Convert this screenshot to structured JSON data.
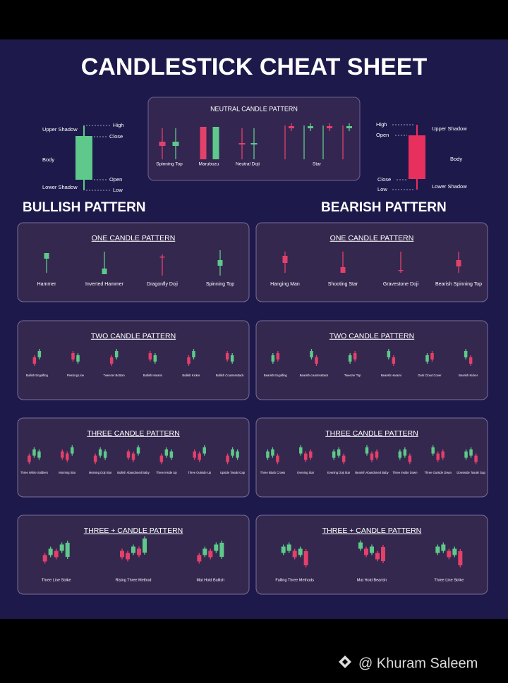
{
  "title": "CANDLESTICK CHEAT SHEET",
  "anatomy_bullish": {
    "upper_shadow": "Upper Shadow",
    "high": "High",
    "close": "Close",
    "body": "Body",
    "open": "Open",
    "lower_shadow": "Lower Shadow",
    "low": "Low"
  },
  "neutral": {
    "title": "NEUTRAL CANDLE PATTERN",
    "patterns": [
      "Spinning Top",
      "Marubozu",
      "Neutral Doji",
      "Star"
    ]
  },
  "anatomy_bearish": {
    "high": "High",
    "open": "Open",
    "upper_shadow": "Upper Shadow",
    "body": "Body",
    "close": "Close",
    "low": "Low",
    "lower_shadow": "Lower Shadow"
  },
  "bullish": {
    "heading": "BULLISH PATTERN",
    "panels": [
      {
        "title": "ONE CANDLE PATTERN",
        "patterns": [
          "Hammer",
          "Inverted Hammer",
          "Dragonfly Doji",
          "Spinning Top"
        ]
      },
      {
        "title": "TWO CANDLE PATTERN",
        "patterns": [
          "Bullish Engulfing",
          "Piercing Line",
          "Tweezer Bottom",
          "Bullish Harami",
          "Bullish Kicker",
          "Bullish Counterattack"
        ]
      },
      {
        "title": "THREE  CANDLE PATTERN",
        "patterns": [
          "Three White Soldiers",
          "Morning Star",
          "Morning Doji Star",
          "Bullish Abandoned Baby",
          "Three Inside Up",
          "Three Outside Up",
          "Upside Tasuki Gap"
        ]
      },
      {
        "title": "THREE + CANDLE PATTERN",
        "patterns": [
          "Three Line Strike",
          "Rising Three Method",
          "Mat Hold Bullish"
        ]
      }
    ]
  },
  "bearish": {
    "heading": "BEARISH PATTERN",
    "panels": [
      {
        "title": "ONE CANDLE PATTERN",
        "patterns": [
          "Hanging Man",
          "Shooting Star",
          "Gravestone Doji",
          "Bearish Spinning Top"
        ]
      },
      {
        "title": "TWO CANDLE PATTERN",
        "patterns": [
          "Bearish Engulfing",
          "Bearish counterattack",
          "Tweezer Top",
          "Bearish Harami",
          "Dark Cloud Cover",
          "Bearish Kicker"
        ]
      },
      {
        "title": "THREE  CANDLE PATTERN",
        "patterns": [
          "Three Black Crows",
          "Evening Star",
          "Evening Doji Star",
          "Bearish Abandoned Baby",
          "Three Inside Down",
          "Three Outside Down",
          "Downside Tasuki Gap"
        ]
      },
      {
        "title": "THREE + CANDLE PATTERN",
        "patterns": [
          "Falling Three Methods",
          "Mat Hold Bearish",
          "Three Line Strike"
        ]
      }
    ]
  },
  "watermark": "@ Khuram Saleem"
}
